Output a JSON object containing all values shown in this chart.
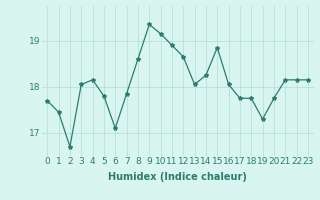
{
  "x": [
    0,
    1,
    2,
    3,
    4,
    5,
    6,
    7,
    8,
    9,
    10,
    11,
    12,
    13,
    14,
    15,
    16,
    17,
    18,
    19,
    20,
    21,
    22,
    23
  ],
  "y": [
    17.7,
    17.45,
    16.7,
    18.05,
    18.15,
    17.8,
    17.1,
    17.85,
    18.6,
    19.35,
    19.15,
    18.9,
    18.65,
    18.05,
    18.25,
    18.85,
    18.05,
    17.75,
    17.75,
    17.3,
    17.75,
    18.15,
    18.15,
    18.15
  ],
  "line_color": "#2d7d6e",
  "marker": "*",
  "marker_size": 3,
  "bg_color": "#d8f5f0",
  "grid_color": "#b8e0da",
  "xlabel": "Humidex (Indice chaleur)",
  "xlabel_fontsize": 7,
  "tick_fontsize": 6.5,
  "ylim": [
    16.5,
    19.75
  ],
  "yticks": [
    17,
    18,
    19
  ],
  "linewidth": 0.9
}
